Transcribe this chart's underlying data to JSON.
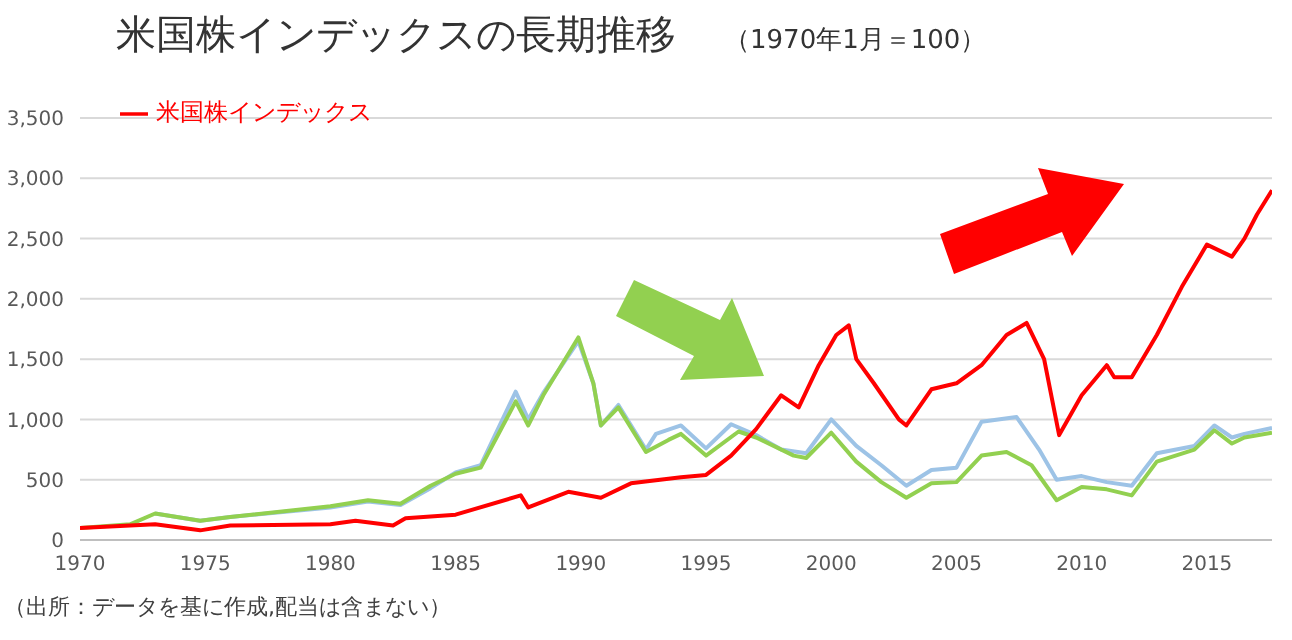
{
  "chart_data": {
    "type": "line",
    "title": "米国株インデックスの長期推移",
    "subtitle": "（1970年1月＝100）",
    "annotations": [
      "（出所：データを基に作成,配当は含まない）"
    ],
    "xlim": [
      1970,
      2017.6
    ],
    "xticks": [
      1970,
      1975,
      1980,
      1985,
      1990,
      1995,
      2000,
      2005,
      2010,
      2015
    ],
    "ylim": [
      0,
      3500
    ],
    "yticks": [
      {
        "value": 0,
        "label": "0"
      },
      {
        "value": 500,
        "label": "500"
      },
      {
        "value": 1000,
        "label": "1,000"
      },
      {
        "value": 1500,
        "label": "1,500"
      },
      {
        "value": 2000,
        "label": "2,000"
      },
      {
        "value": 2500,
        "label": "2,500"
      },
      {
        "value": 3000,
        "label": "3,000"
      },
      {
        "value": 3500,
        "label": "3,500"
      }
    ],
    "grid": "y",
    "legend": "top left",
    "marker": "none",
    "series": [
      {
        "color": "#9dc3e6",
        "x": [
          1973,
          1974.8,
          1976,
          1980,
          1981.5,
          1982.8,
          1984,
          1985,
          1986,
          1987.4,
          1987.9,
          1988.5,
          1989.9,
          1990.5,
          1990.8,
          1991.5,
          1992.6,
          1993,
          1994,
          1995,
          1996,
          1997,
          1998,
          1999,
          2000,
          2001,
          2002,
          2003,
          2004,
          2005,
          2006,
          2007.4,
          2008.3,
          2009,
          2010,
          2011,
          2012,
          2013,
          2014.5,
          2015.3,
          2016,
          2016.5,
          2017.6
        ],
        "values": [
          220,
          160,
          190,
          270,
          320,
          290,
          430,
          560,
          620,
          1230,
          1000,
          1220,
          1650,
          1300,
          950,
          1120,
          750,
          880,
          950,
          760,
          960,
          870,
          750,
          720,
          1000,
          780,
          620,
          450,
          580,
          600,
          980,
          1020,
          750,
          500,
          530,
          480,
          450,
          720,
          780,
          950,
          850,
          880,
          930
        ]
      },
      {
        "color": "#92d050",
        "x": [
          1970,
          1972,
          1973,
          1974.8,
          1976,
          1980,
          1981.5,
          1982.8,
          1984,
          1985,
          1986,
          1987.4,
          1987.9,
          1988.5,
          1989.9,
          1990.5,
          1990.8,
          1991.5,
          1992.6,
          1993.5,
          1994,
          1995,
          1996.3,
          1997,
          1998.5,
          1999,
          2000,
          2001,
          2002,
          2003,
          2004,
          2005,
          2006,
          2007,
          2008,
          2009,
          2010,
          2011,
          2012,
          2013,
          2014.5,
          2015.3,
          2016,
          2016.5,
          2017.6
        ],
        "values": [
          100,
          130,
          220,
          160,
          190,
          280,
          330,
          300,
          450,
          550,
          600,
          1150,
          950,
          1200,
          1680,
          1300,
          950,
          1100,
          730,
          830,
          880,
          700,
          900,
          850,
          700,
          680,
          890,
          650,
          480,
          350,
          470,
          480,
          700,
          730,
          620,
          330,
          440,
          420,
          370,
          650,
          750,
          910,
          800,
          850,
          890
        ]
      },
      {
        "name": "米国株インデックス",
        "color": "#ff0000",
        "x": [
          1970,
          1972,
          1973,
          1974.8,
          1976,
          1980,
          1981,
          1982.5,
          1983,
          1985,
          1987.6,
          1987.9,
          1989.5,
          1990.8,
          1992,
          1994,
          1995,
          1996,
          1997,
          1998,
          1998.7,
          1999.5,
          2000.2,
          2000.7,
          2001,
          2001.7,
          2002.7,
          2003,
          2004,
          2005,
          2006,
          2007,
          2007.8,
          2008.5,
          2009.1,
          2010,
          2011,
          2011.3,
          2012,
          2013,
          2014,
          2015,
          2016,
          2016.5,
          2017,
          2017.6
        ],
        "values": [
          100,
          120,
          130,
          80,
          120,
          130,
          160,
          120,
          180,
          210,
          370,
          270,
          400,
          350,
          470,
          520,
          540,
          700,
          920,
          1200,
          1100,
          1450,
          1700,
          1780,
          1500,
          1300,
          1000,
          950,
          1250,
          1300,
          1450,
          1700,
          1800,
          1500,
          870,
          1200,
          1450,
          1350,
          1350,
          1700,
          2100,
          2450,
          2350,
          2500,
          2700,
          2900
        ]
      }
    ]
  }
}
